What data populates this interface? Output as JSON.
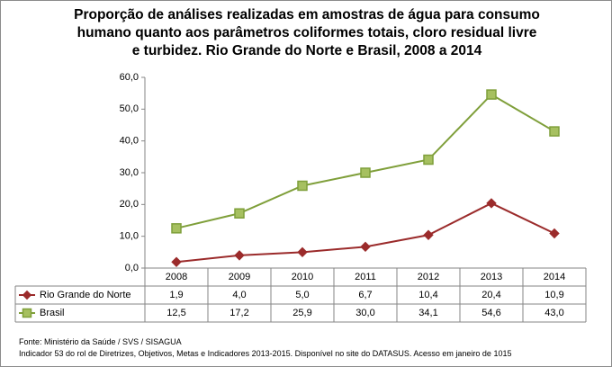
{
  "title": {
    "line1": "Proporção de análises realizadas em amostras de água para consumo",
    "line2": "humano quanto aos parâmetros coliformes totais, cloro residual livre",
    "line3": "e turbidez. Rio Grande do Norte e Brasil, 2008 a 2014"
  },
  "chart_data": {
    "type": "line",
    "title": "Proporção de análises realizadas em amostras de água para consumo humano quanto aos parâmetros coliformes totais, cloro residual livre e turbidez. Rio Grande do Norte e Brasil, 2008 a 2014",
    "categories": [
      "2008",
      "2009",
      "2010",
      "2011",
      "2012",
      "2013",
      "2014"
    ],
    "ylim": [
      0,
      60
    ],
    "yticks": [
      0,
      10,
      20,
      30,
      40,
      50,
      60
    ],
    "ytick_labels": [
      "0,0",
      "10,0",
      "20,0",
      "30,0",
      "40,0",
      "50,0",
      "60,0"
    ],
    "grid": false,
    "legend": "data-table-left",
    "series": [
      {
        "name": "Rio Grande do Norte",
        "color": "#9b2b2b",
        "marker": "diamond",
        "values": [
          1.9,
          4.0,
          5.0,
          6.7,
          10.4,
          20.4,
          10.9
        ],
        "labels": [
          "1,9",
          "4,0",
          "5,0",
          "6,7",
          "10,4",
          "20,4",
          "10,9"
        ]
      },
      {
        "name": "Brasil",
        "color": "#7f9f3a",
        "marker_fill": "#a6c060",
        "marker": "square",
        "values": [
          12.5,
          17.2,
          25.9,
          30.0,
          34.1,
          54.6,
          43.0
        ],
        "labels": [
          "12,5",
          "17,2",
          "25,9",
          "30,0",
          "34,1",
          "54,6",
          "43,0"
        ]
      }
    ]
  },
  "footer": {
    "source": "Fonte: Ministério da Saúde / SVS / SISAGUA",
    "note": "Indicador 53 do rol de Diretrizes, Objetivos, Metas e Indicadores 2013-2015. Disponível no site do DATASUS. Acesso em janeiro de 1015"
  }
}
